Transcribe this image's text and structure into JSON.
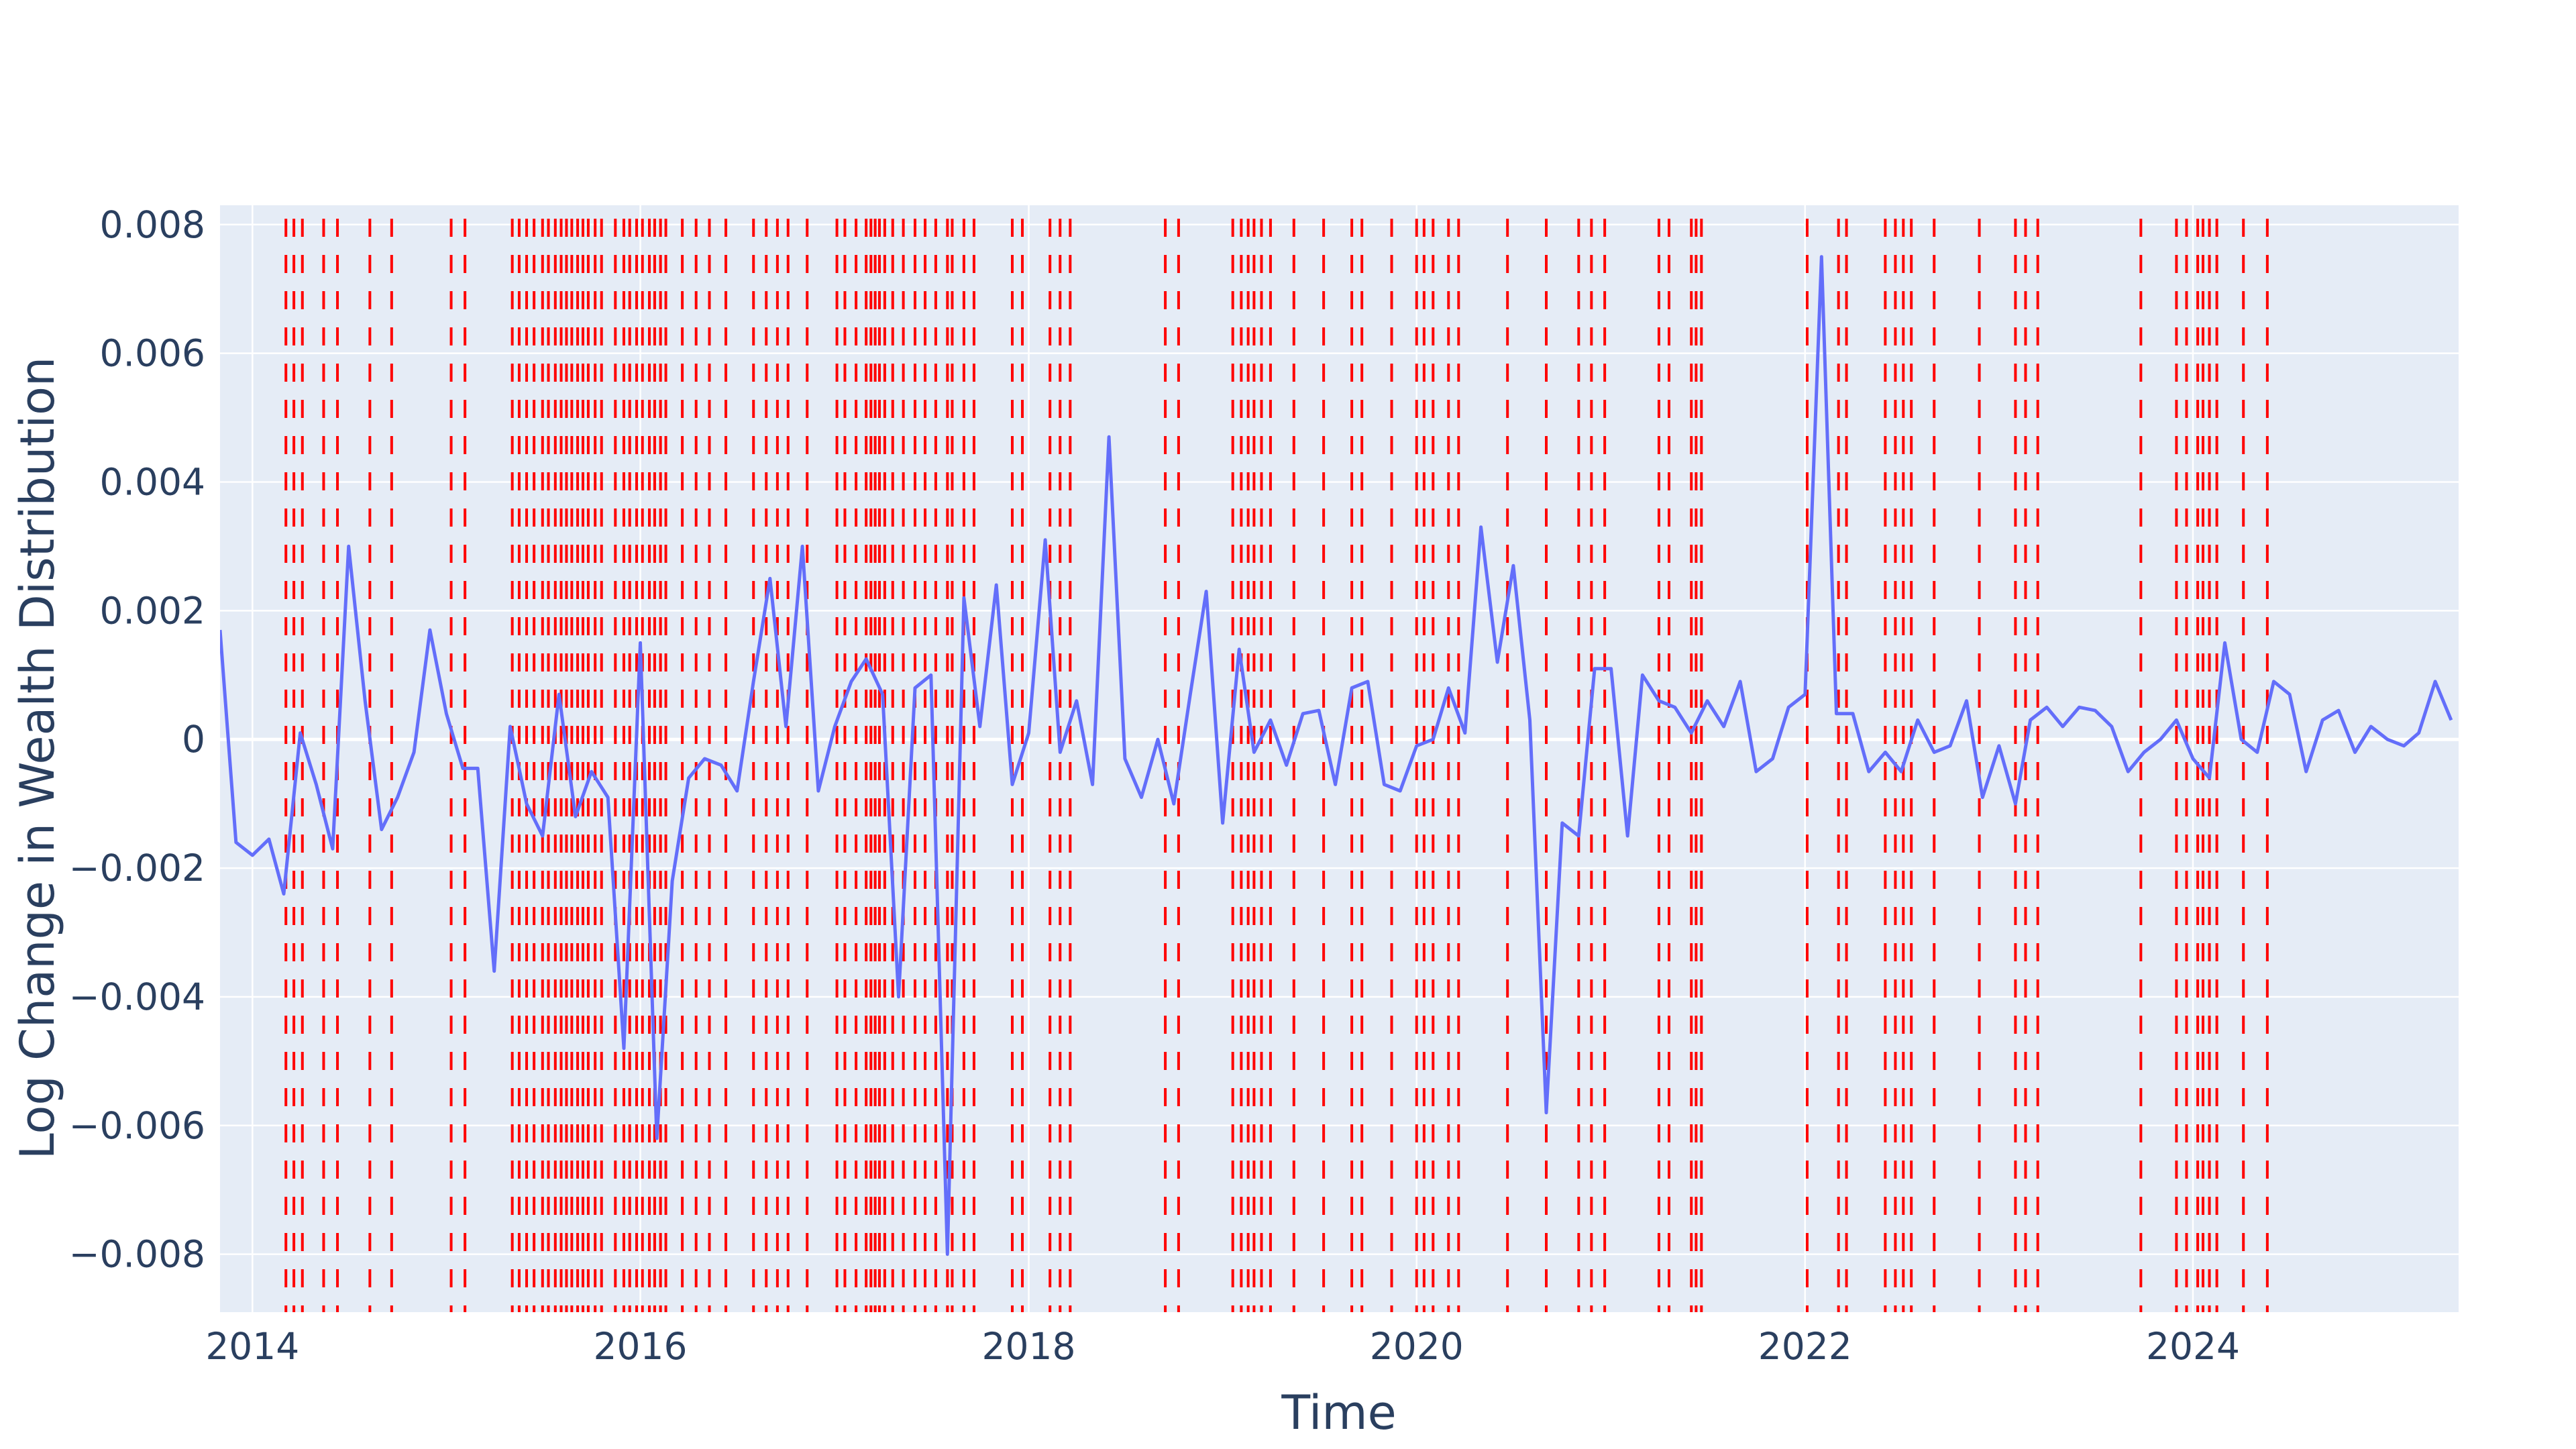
{
  "chart_data": {
    "type": "line",
    "title": "",
    "xlabel": "Time",
    "ylabel": "Log Change in Wealth Distribution",
    "xlim": [
      "2013-11-01",
      "2025-05-15"
    ],
    "ylim": [
      -0.0089,
      0.0083
    ],
    "x_ticks": [
      {
        "value": "2014-01-01",
        "label": "2014"
      },
      {
        "value": "2016-01-01",
        "label": "2016"
      },
      {
        "value": "2018-01-01",
        "label": "2018"
      },
      {
        "value": "2020-01-01",
        "label": "2020"
      },
      {
        "value": "2022-01-01",
        "label": "2022"
      },
      {
        "value": "2024-01-01",
        "label": "2024"
      }
    ],
    "y_ticks": [
      {
        "value": 0.008,
        "label": "0.008"
      },
      {
        "value": 0.006,
        "label": "0.006"
      },
      {
        "value": 0.004,
        "label": "0.004"
      },
      {
        "value": 0.002,
        "label": "0.002"
      },
      {
        "value": 0,
        "label": "0"
      },
      {
        "value": -0.002,
        "label": "−0.002"
      },
      {
        "value": -0.004,
        "label": "−0.004"
      },
      {
        "value": -0.006,
        "label": "−0.006"
      },
      {
        "value": -0.008,
        "label": "−0.008"
      }
    ],
    "grid": true,
    "colors": {
      "background": "#e5ecf6",
      "grid": "#ffffff",
      "line": "#636efa",
      "markers": "#ff0000",
      "text": "#2a3f5f"
    },
    "series": [
      {
        "x": [
          "2013-11",
          "2013-12",
          "2014-01",
          "2014-02",
          "2014-03",
          "2014-04",
          "2014-05",
          "2014-06",
          "2014-07",
          "2014-08",
          "2014-09",
          "2014-10",
          "2014-11",
          "2014-12",
          "2015-01",
          "2015-02",
          "2015-03",
          "2015-04",
          "2015-05",
          "2015-06",
          "2015-07",
          "2015-08",
          "2015-09",
          "2015-10",
          "2015-11",
          "2015-12",
          "2016-01",
          "2016-02",
          "2016-03",
          "2016-04",
          "2016-05",
          "2016-06",
          "2016-07",
          "2016-08",
          "2016-09",
          "2016-10",
          "2016-11",
          "2016-12",
          "2017-01",
          "2017-02",
          "2017-03",
          "2017-04",
          "2017-05",
          "2017-06",
          "2017-07",
          "2017-08",
          "2017-09",
          "2017-10",
          "2017-11",
          "2017-12",
          "2018-01",
          "2018-02",
          "2018-03",
          "2018-04",
          "2018-05",
          "2018-06",
          "2018-07",
          "2018-08",
          "2018-09",
          "2018-10",
          "2018-11",
          "2018-12",
          "2019-01",
          "2019-02",
          "2019-03",
          "2019-04",
          "2019-05",
          "2019-06",
          "2019-07",
          "2019-08",
          "2019-09",
          "2019-10",
          "2019-11",
          "2019-12",
          "2020-01",
          "2020-02",
          "2020-03",
          "2020-04",
          "2020-05",
          "2020-06",
          "2020-07",
          "2020-08",
          "2020-09",
          "2020-10",
          "2020-11",
          "2020-12",
          "2021-01",
          "2021-02",
          "2021-03",
          "2021-04",
          "2021-05",
          "2021-06",
          "2021-07",
          "2021-08",
          "2021-09",
          "2021-10",
          "2021-11",
          "2021-12",
          "2022-01",
          "2022-02",
          "2022-03",
          "2022-04",
          "2022-05",
          "2022-06",
          "2022-07",
          "2022-08",
          "2022-09",
          "2022-10",
          "2022-11",
          "2022-12",
          "2023-01",
          "2023-02",
          "2023-03",
          "2023-04",
          "2023-05",
          "2023-06",
          "2023-07",
          "2023-08",
          "2023-09",
          "2023-10",
          "2023-11",
          "2023-12",
          "2024-01",
          "2024-02",
          "2024-03",
          "2024-04",
          "2024-05",
          "2024-06",
          "2024-07",
          "2024-08",
          "2024-09",
          "2024-10",
          "2024-11",
          "2024-12",
          "2025-01",
          "2025-02",
          "2025-03",
          "2025-04",
          "2025-05"
        ],
        "y": [
          0.0017,
          -0.0016,
          -0.0018,
          -0.00155,
          -0.0024,
          0.0001,
          -0.0007,
          -0.0017,
          0.003,
          0.0006,
          -0.0014,
          -0.0009,
          -0.0002,
          0.0017,
          0.0004,
          -0.00045,
          -0.00045,
          -0.0036,
          0.0002,
          -0.001,
          -0.0015,
          0.0007,
          -0.0012,
          -0.0005,
          -0.0009,
          -0.0048,
          0.0015,
          -0.0062,
          -0.0022,
          -0.0006,
          -0.0003,
          -0.0004,
          -0.0008,
          0.0009,
          0.0025,
          0.0002,
          0.003,
          -0.0008,
          0.0002,
          0.0009,
          0.00125,
          0.0007,
          -0.004,
          0.0008,
          0.001,
          -0.008,
          0.0022,
          0.0002,
          0.0024,
          -0.0007,
          0.0001,
          0.0031,
          -0.0002,
          0.0006,
          -0.0007,
          0.0047,
          -0.0003,
          -0.0009,
          0.0,
          -0.001,
          0.0007,
          0.0023,
          -0.0013,
          0.0014,
          -0.0002,
          0.0003,
          -0.0004,
          0.0004,
          0.00045,
          -0.0007,
          0.0008,
          0.0009,
          -0.0007,
          -0.0008,
          -0.0001,
          0.0,
          0.0008,
          0.0001,
          0.0033,
          0.0012,
          0.0027,
          0.0003,
          -0.0058,
          -0.0013,
          -0.0015,
          0.0011,
          0.0011,
          -0.0015,
          0.001,
          0.0006,
          0.0005,
          0.0001,
          0.0006,
          0.0002,
          0.0009,
          -0.0005,
          -0.0003,
          0.0005,
          0.0007,
          0.0075,
          0.0004,
          0.0004,
          -0.0005,
          -0.0002,
          -0.0005,
          0.0003,
          -0.0002,
          -0.0001,
          0.0006,
          -0.0009,
          -0.0001,
          -0.001,
          0.0003,
          0.0005,
          0.0002,
          0.0005,
          0.00045,
          0.0002,
          -0.0005,
          -0.0002,
          0.0,
          0.0003,
          -0.0003,
          -0.0006,
          0.0015,
          0.0,
          -0.0002,
          0.0009,
          0.0007,
          -0.0005,
          0.0003,
          0.00045,
          -0.0002,
          0.0002,
          0.0,
          -0.0001,
          0.0001,
          0.0009,
          0.0003
        ]
      }
    ],
    "vertical_markers": [
      "2014-03-05",
      "2014-03-20",
      "2014-04-05",
      "2014-05-15",
      "2014-06-10",
      "2014-08-10",
      "2014-09-20",
      "2015-01-10",
      "2015-02-05",
      "2015-05-05",
      "2015-05-18",
      "2015-06-01",
      "2015-06-15",
      "2015-07-01",
      "2015-07-12",
      "2015-07-25",
      "2015-08-05",
      "2015-08-15",
      "2015-08-25",
      "2015-09-05",
      "2015-09-15",
      "2015-09-25",
      "2015-10-08",
      "2015-10-20",
      "2015-11-15",
      "2015-12-01",
      "2015-12-12",
      "2015-12-25",
      "2016-01-05",
      "2016-01-18",
      "2016-01-28",
      "2016-02-08",
      "2016-02-18",
      "2016-03-20",
      "2016-04-15",
      "2016-05-10",
      "2016-06-10",
      "2016-08-01",
      "2016-08-25",
      "2016-09-15",
      "2016-10-05",
      "2016-11-10",
      "2017-01-05",
      "2017-01-20",
      "2017-02-10",
      "2017-03-01",
      "2017-03-10",
      "2017-03-18",
      "2017-03-26",
      "2017-04-05",
      "2017-04-20",
      "2017-05-10",
      "2017-06-01",
      "2017-06-20",
      "2017-07-10",
      "2017-08-01",
      "2017-08-10",
      "2017-09-01",
      "2017-09-20",
      "2017-12-01",
      "2017-12-20",
      "2018-02-10",
      "2018-03-01",
      "2018-03-20",
      "2018-09-15",
      "2018-10-10",
      "2019-01-20",
      "2019-02-05",
      "2019-02-18",
      "2019-03-01",
      "2019-03-15",
      "2019-04-01",
      "2019-05-15",
      "2019-07-10",
      "2019-09-01",
      "2019-09-20",
      "2019-11-15",
      "2020-01-01",
      "2020-01-15",
      "2020-02-01",
      "2020-03-01",
      "2020-03-20",
      "2020-06-20",
      "2020-09-01",
      "2020-11-01",
      "2020-11-25",
      "2020-12-20",
      "2021-04-01",
      "2021-04-20",
      "2021-06-01",
      "2021-06-10",
      "2021-06-20",
      "2022-01-05",
      "2022-03-05",
      "2022-03-20",
      "2022-06-01",
      "2022-06-20",
      "2022-07-05",
      "2022-07-20",
      "2022-09-01",
      "2022-11-25",
      "2023-02-01",
      "2023-02-20",
      "2023-03-15",
      "2023-09-25",
      "2023-12-01",
      "2023-12-20",
      "2024-01-10",
      "2024-01-20",
      "2024-02-01",
      "2024-02-15",
      "2024-04-05",
      "2024-05-20"
    ]
  }
}
